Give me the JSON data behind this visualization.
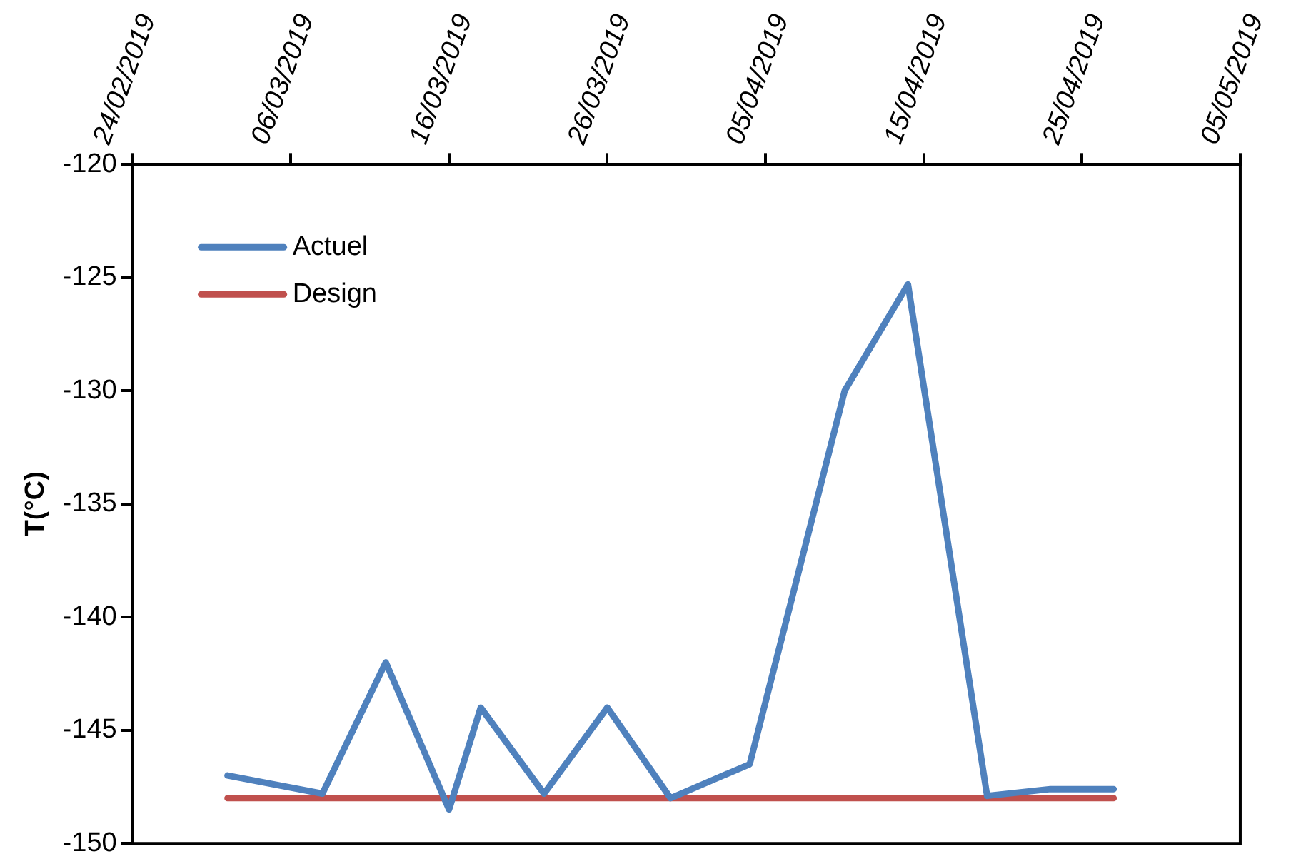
{
  "chart_data": {
    "type": "line",
    "ylabel": "T(°C)",
    "x": [
      "2019-03-02",
      "2019-03-08",
      "2019-03-12",
      "2019-03-16",
      "2019-03-18",
      "2019-03-22",
      "2019-03-26",
      "2019-03-30",
      "2019-04-04",
      "2019-04-10",
      "2019-04-14",
      "2019-04-19",
      "2019-04-23",
      "2019-04-27"
    ],
    "series": [
      {
        "name": "Actuel",
        "color": "#4f81bd",
        "values": [
          -147,
          -147.8,
          -142,
          -148.5,
          -144,
          -147.8,
          -144,
          -148,
          -146.5,
          -130,
          -125.3,
          -147.9,
          -147.6,
          -147.6
        ]
      },
      {
        "name": "Design",
        "color": "#c0504d",
        "values": [
          -148,
          -148,
          -148,
          -148,
          -148,
          -148,
          -148,
          -148,
          -148,
          -148,
          -148,
          -148,
          -148,
          -148
        ]
      }
    ],
    "xlim": [
      "2019-02-24",
      "2019-05-05"
    ],
    "xticks": [
      {
        "value": "2019-02-24",
        "label": "24/02/2019"
      },
      {
        "value": "2019-03-06",
        "label": "06/03/2019"
      },
      {
        "value": "2019-03-16",
        "label": "16/03/2019"
      },
      {
        "value": "2019-03-26",
        "label": "26/03/2019"
      },
      {
        "value": "2019-04-05",
        "label": "05/04/2019"
      },
      {
        "value": "2019-04-15",
        "label": "15/04/2019"
      },
      {
        "value": "2019-04-25",
        "label": "25/04/2019"
      },
      {
        "value": "2019-05-05",
        "label": "05/05/2019"
      }
    ],
    "ylim": [
      -150,
      -120
    ],
    "yticks": [
      -150,
      -145,
      -140,
      -135,
      -130,
      -125,
      -120
    ],
    "legend": "top left",
    "marker": "none",
    "line_style": "solid"
  }
}
